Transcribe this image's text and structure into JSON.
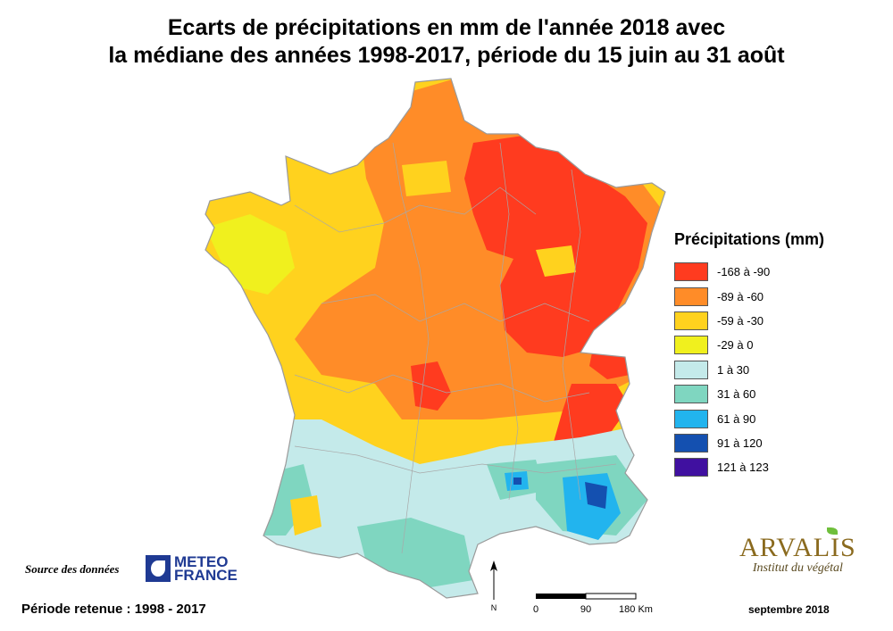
{
  "title": {
    "line1": "Ecarts de précipitations en mm de l'année 2018 avec",
    "line2": "la médiane des années 1998-2017, période du 15 juin au 31 août"
  },
  "legend": {
    "title": "Précipitations (mm)",
    "items": [
      {
        "label": "-168 à -90",
        "color": "#ff3b1f"
      },
      {
        "label": "-89 à -60",
        "color": "#ff8c28"
      },
      {
        "label": "-59 à -30",
        "color": "#ffd21e"
      },
      {
        "label": "-29 à 0",
        "color": "#f0f01e"
      },
      {
        "label": "1 à 30",
        "color": "#c4eaea"
      },
      {
        "label": "31 à 60",
        "color": "#7fd6c0"
      },
      {
        "label": "61 à 90",
        "color": "#22b4ee"
      },
      {
        "label": "91 à 120",
        "color": "#1450b0"
      },
      {
        "label": "121 à 123",
        "color": "#4010a0"
      }
    ]
  },
  "source": {
    "label": "Source des données",
    "logo_line1": "METEO",
    "logo_line2": "FRANCE"
  },
  "periode": "Période retenue :  1998 - 2017",
  "date": "septembre 2018",
  "scale": {
    "ticks": [
      "0",
      "90",
      "180 Km"
    ]
  },
  "north": "N",
  "brand": {
    "name": "ARVALIS",
    "subtitle": "Institut du végétal"
  }
}
